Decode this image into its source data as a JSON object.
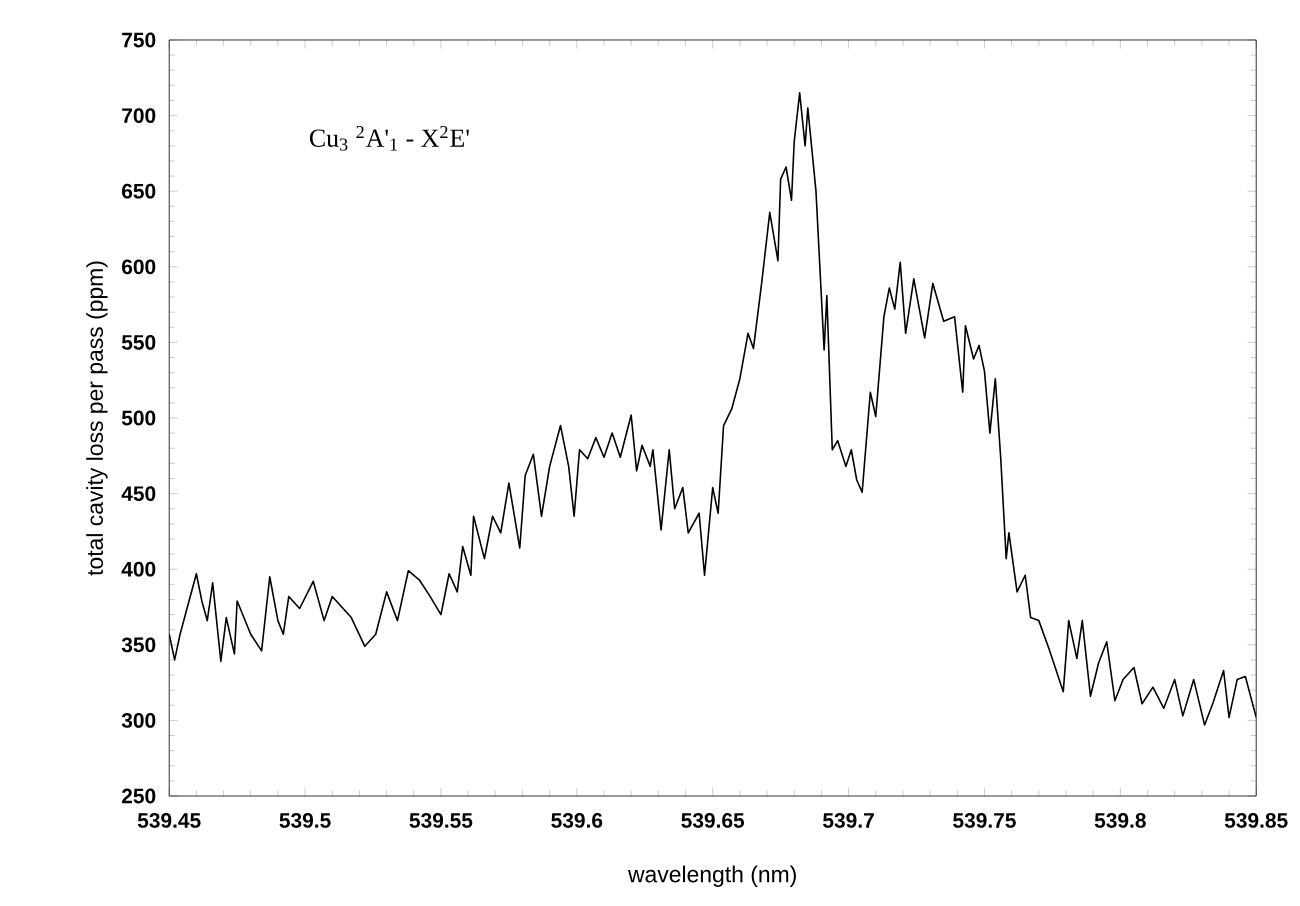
{
  "chart_data": {
    "type": "line",
    "xlabel": "wavelength (nm)",
    "ylabel": "total cavity loss per pass (ppm)",
    "annotations": [
      "Cu$_{3}$ $^{2}$A'$_{1}$ - X$^{2}$E'"
    ],
    "xlim": [
      539.45,
      539.85
    ],
    "ylim": [
      250,
      750
    ],
    "xticks": [
      539.45,
      539.5,
      539.55,
      539.6,
      539.65,
      539.7,
      539.75,
      539.8,
      539.85
    ],
    "yticks": [
      250,
      300,
      350,
      400,
      450,
      500,
      550,
      600,
      650,
      700,
      750
    ],
    "grid": false,
    "marker": "none",
    "line_style": "solid",
    "series": [
      {
        "color": "#000000",
        "x": [
          539.45,
          539.452,
          539.454,
          539.457,
          539.46,
          539.462,
          539.464,
          539.466,
          539.469,
          539.471,
          539.474,
          539.475,
          539.48,
          539.484,
          539.487,
          539.49,
          539.492,
          539.494,
          539.498,
          539.503,
          539.507,
          539.51,
          539.517,
          539.522,
          539.526,
          539.53,
          539.534,
          539.538,
          539.542,
          539.546,
          539.55,
          539.553,
          539.556,
          539.558,
          539.561,
          539.562,
          539.566,
          539.569,
          539.572,
          539.575,
          539.579,
          539.581,
          539.584,
          539.587,
          539.59,
          539.594,
          539.597,
          539.599,
          539.601,
          539.604,
          539.607,
          539.61,
          539.613,
          539.616,
          539.62,
          539.622,
          539.624,
          539.627,
          539.628,
          539.631,
          539.634,
          539.636,
          539.639,
          539.641,
          539.645,
          539.647,
          539.65,
          539.652,
          539.654,
          539.657,
          539.66,
          539.663,
          539.665,
          539.668,
          539.671,
          539.674,
          539.675,
          539.677,
          539.679,
          539.68,
          539.682,
          539.684,
          539.685,
          539.688,
          539.691,
          539.692,
          539.694,
          539.696,
          539.699,
          539.701,
          539.703,
          539.705,
          539.708,
          539.71,
          539.713,
          539.715,
          539.717,
          539.719,
          539.721,
          539.724,
          539.728,
          539.731,
          539.735,
          539.739,
          539.742,
          539.743,
          539.746,
          539.748,
          539.75,
          539.752,
          539.754,
          539.756,
          539.758,
          539.759,
          539.762,
          539.765,
          539.767,
          539.77,
          539.774,
          539.779,
          539.781,
          539.784,
          539.786,
          539.789,
          539.792,
          539.795,
          539.798,
          539.801,
          539.805,
          539.808,
          539.812,
          539.816,
          539.82,
          539.823,
          539.827,
          539.831,
          539.834,
          539.838,
          539.84,
          539.843,
          539.846,
          539.85
        ],
        "values": [
          357,
          340,
          357,
          377,
          397,
          379,
          366,
          391,
          339,
          368,
          344,
          379,
          357,
          346,
          395,
          366,
          357,
          382,
          374,
          392,
          366,
          382,
          368,
          349,
          357,
          385,
          366,
          399,
          393,
          382,
          370,
          397,
          385,
          415,
          396,
          435,
          407,
          435,
          424,
          457,
          414,
          462,
          476,
          435,
          468,
          495,
          468,
          435,
          479,
          473,
          487,
          474,
          490,
          474,
          502,
          465,
          482,
          468,
          479,
          426,
          479,
          440,
          454,
          424,
          437,
          396,
          454,
          437,
          495,
          506,
          526,
          556,
          546,
          589,
          636,
          604,
          658,
          666,
          644,
          683,
          715,
          680,
          705,
          650,
          545,
          581,
          479,
          485,
          468,
          479,
          459,
          451,
          517,
          501,
          567,
          586,
          572,
          603,
          556,
          592,
          553,
          589,
          564,
          567,
          517,
          561,
          539,
          548,
          531,
          490,
          526,
          473,
          407,
          424,
          385,
          396,
          368,
          366,
          346,
          319,
          366,
          341,
          366,
          316,
          338,
          352,
          313,
          327,
          335,
          311,
          322,
          308,
          327,
          303,
          327,
          297,
          311,
          333,
          302,
          327,
          329,
          302
        ]
      }
    ]
  }
}
